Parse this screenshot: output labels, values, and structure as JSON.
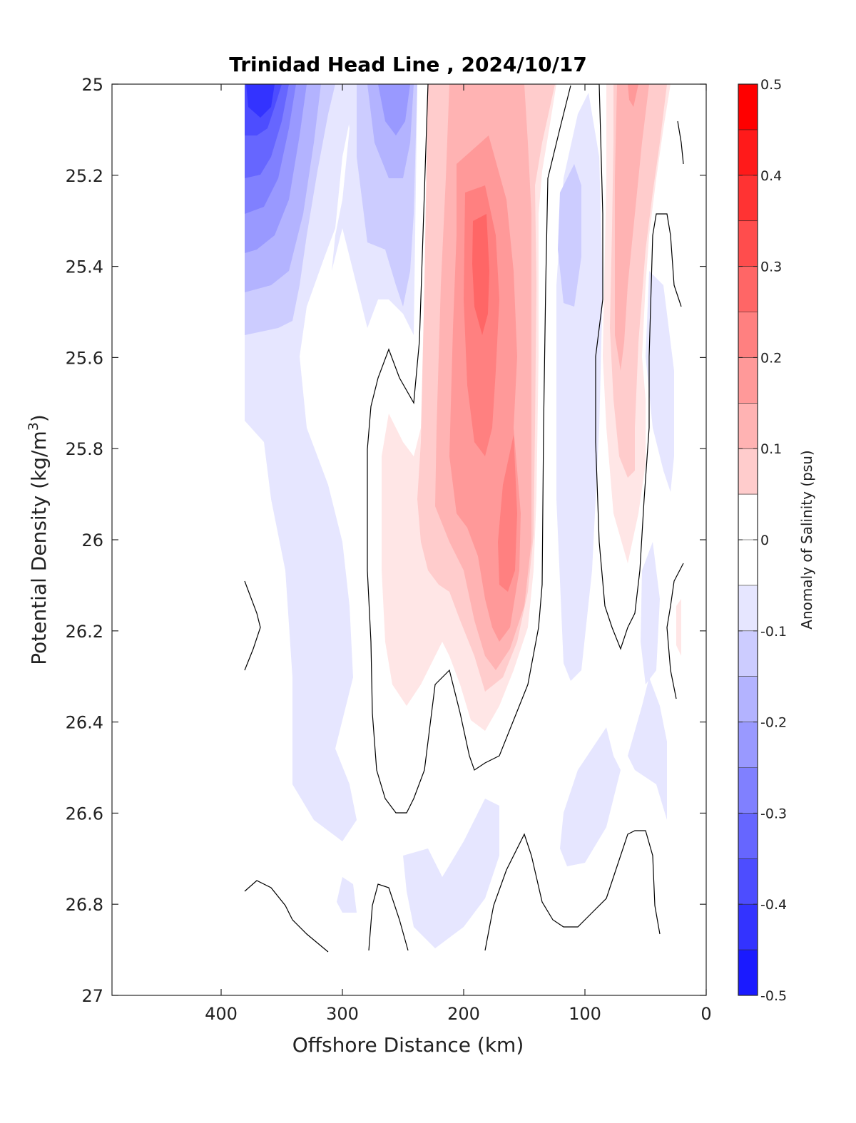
{
  "chart_data": {
    "type": "heatmap",
    "subtype": "filled-contour",
    "title": "Trinidad Head Line , 2024/10/17",
    "xlabel": "Offshore Distance (km)",
    "ylabel": "Potential Density (kg/m",
    "ylabel_superscript": "3",
    "ylabel_suffix": ")",
    "colorbar_label": "Anomaly of Salinity (psu)",
    "x_axis": {
      "lim": [
        490,
        0
      ],
      "reversed": true,
      "ticks": [
        400,
        300,
        200,
        100,
        0
      ],
      "tick_labels": [
        "400",
        "300",
        "200",
        "100",
        "0"
      ]
    },
    "y_axis": {
      "lim": [
        25,
        27
      ],
      "reversed": true,
      "ticks": [
        25,
        25.2,
        25.4,
        25.6,
        25.8,
        26,
        26.2,
        26.4,
        26.6,
        26.8,
        27
      ],
      "tick_labels": [
        "25",
        "25.2",
        "25.4",
        "25.6",
        "25.8",
        "26",
        "26.2",
        "26.4",
        "26.6",
        "26.8",
        "27"
      ]
    },
    "colorbar": {
      "lim": [
        -0.5,
        0.5
      ],
      "ticks": [
        0.5,
        0.4,
        0.3,
        0.2,
        0.1,
        0,
        -0.1,
        -0.2,
        -0.3,
        -0.4,
        -0.5
      ],
      "tick_labels": [
        "0.5",
        "0.4",
        "0.3",
        "0.2",
        "0.1",
        "0",
        "-0.1",
        "-0.2",
        "-0.3",
        "-0.4",
        "-0.5"
      ],
      "levels": [
        {
          "lo": 0.45,
          "hi": 0.5,
          "color": "#ff0000"
        },
        {
          "lo": 0.4,
          "hi": 0.45,
          "color": "#ff1a1a"
        },
        {
          "lo": 0.35,
          "hi": 0.4,
          "color": "#ff3333"
        },
        {
          "lo": 0.3,
          "hi": 0.35,
          "color": "#ff4d4d"
        },
        {
          "lo": 0.25,
          "hi": 0.3,
          "color": "#ff6666"
        },
        {
          "lo": 0.2,
          "hi": 0.25,
          "color": "#ff8080"
        },
        {
          "lo": 0.15,
          "hi": 0.2,
          "color": "#ff9999"
        },
        {
          "lo": 0.1,
          "hi": 0.15,
          "color": "#ffb3b3"
        },
        {
          "lo": 0.05,
          "hi": 0.1,
          "color": "#ffcccc"
        },
        {
          "lo": 0.0,
          "hi": 0.05,
          "color": "#ffe6e6"
        },
        {
          "lo": -0.05,
          "hi": 0.05,
          "color": "#ffffff"
        },
        {
          "lo": -0.1,
          "hi": -0.05,
          "color": "#e6e6ff"
        },
        {
          "lo": -0.15,
          "hi": -0.1,
          "color": "#ccccff"
        },
        {
          "lo": -0.2,
          "hi": -0.15,
          "color": "#b3b3ff"
        },
        {
          "lo": -0.25,
          "hi": -0.2,
          "color": "#9999ff"
        },
        {
          "lo": -0.3,
          "hi": -0.25,
          "color": "#8080ff"
        },
        {
          "lo": -0.35,
          "hi": -0.3,
          "color": "#6666ff"
        },
        {
          "lo": -0.4,
          "hi": -0.35,
          "color": "#4d4dff"
        },
        {
          "lo": -0.45,
          "hi": -0.4,
          "color": "#3333ff"
        },
        {
          "lo": -0.5,
          "hi": -0.45,
          "color": "#1a1aff"
        }
      ]
    },
    "data_extent_x": [
      380,
      20
    ],
    "features": [
      {
        "name": "negative core",
        "anomaly": -0.4,
        "x": 365,
        "y": 25.05
      },
      {
        "name": "negative offshore band",
        "anomaly": -0.2,
        "x": 360,
        "y": 25.3
      },
      {
        "name": "negative lobe",
        "anomaly": -0.15,
        "x": 258,
        "y": 25.1
      },
      {
        "name": "positive core",
        "anomaly": 0.25,
        "x": 185,
        "y": 25.4
      },
      {
        "name": "positive lower core",
        "anomaly": 0.25,
        "x": 168,
        "y": 25.95
      },
      {
        "name": "positive nearshore band",
        "anomaly": 0.15,
        "x": 70,
        "y": 25.7
      },
      {
        "name": "negative nearshore lobe",
        "anomaly": -0.1,
        "x": 115,
        "y": 25.35
      },
      {
        "name": "negative deep lobe",
        "anomaly": -0.05,
        "x": 200,
        "y": 26.75
      }
    ]
  }
}
